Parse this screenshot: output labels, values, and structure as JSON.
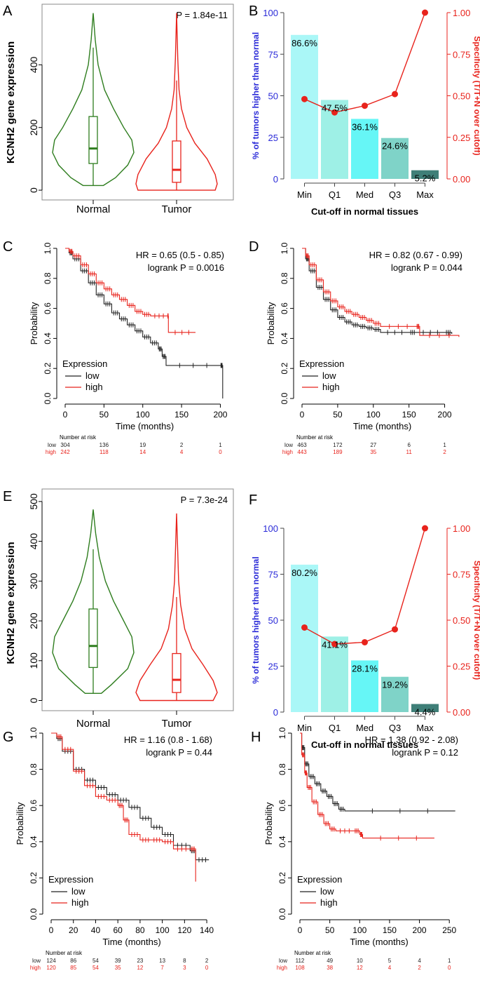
{
  "figure": {
    "panel_letters": [
      "A",
      "B",
      "C",
      "D",
      "E",
      "F",
      "G",
      "H"
    ]
  },
  "colors": {
    "normal_green": "#2e7d1e",
    "tumor_red": "#e8231c",
    "axis_blue": "#2a2ad8",
    "spec_red": "#e8231c",
    "km_low": "#222222",
    "km_high": "#e8231c",
    "bar_Min": "#aaf7f7",
    "bar_Q1": "#9ef0e6",
    "bar_Med": "#66f6f6",
    "bar_Q3": "#7fd3c8",
    "bar_Max": "#3f7f78"
  },
  "chart_data": [
    {
      "id": "A",
      "type": "violin",
      "ylabel": "KCNH2 gene expression",
      "categories": [
        "Normal",
        "Tumor"
      ],
      "yticks": [
        0,
        200,
        400
      ],
      "ylim": [
        -20,
        580
      ],
      "pvalue": "P = 1.84e-11",
      "groups": [
        {
          "name": "Normal",
          "min": 15,
          "q1": 85,
          "median": 133,
          "q3": 235,
          "max": 455,
          "top": 565,
          "density": [
            [
              15,
              0.25
            ],
            [
              40,
              0.55
            ],
            [
              80,
              0.85
            ],
            [
              120,
              1.0
            ],
            [
              160,
              0.95
            ],
            [
              200,
              0.75
            ],
            [
              260,
              0.5
            ],
            [
              320,
              0.28
            ],
            [
              400,
              0.12
            ],
            [
              480,
              0.05
            ],
            [
              565,
              0
            ]
          ]
        },
        {
          "name": "Tumor",
          "min": 0,
          "q1": 25,
          "median": 65,
          "q3": 157,
          "max": 350,
          "top": 565,
          "density": [
            [
              0,
              0.95
            ],
            [
              20,
              1.0
            ],
            [
              50,
              0.95
            ],
            [
              100,
              0.75
            ],
            [
              150,
              0.45
            ],
            [
              200,
              0.25
            ],
            [
              260,
              0.12
            ],
            [
              320,
              0.06
            ],
            [
              420,
              0.03
            ],
            [
              565,
              0
            ]
          ]
        }
      ]
    },
    {
      "id": "B",
      "type": "bar+line",
      "categories": [
        "Min",
        "Q1",
        "Med",
        "Q3",
        "Max"
      ],
      "values": [
        86.6,
        47.5,
        36.1,
        24.6,
        5.2
      ],
      "labels": [
        "86.6%",
        "47.5%",
        "36.1%",
        "24.6%",
        "5.2%"
      ],
      "specificity": [
        0.48,
        0.4,
        0.44,
        0.51,
        1.0
      ],
      "ylabel": "% of tumors higher than normal",
      "y2label": "Specificity (T/T+N over cutoff)",
      "xlabel": "Cut-off in normal tissues",
      "yticks": [
        0,
        25,
        50,
        75,
        100
      ],
      "y2ticks": [
        "0.00",
        "0.25",
        "0.50",
        "0.75",
        "1.00"
      ]
    },
    {
      "id": "C",
      "type": "kaplan-meier",
      "hr": "HR = 0.65 (0.5 - 0.85)",
      "logrank": "logrank P = 0.0016",
      "xlabel": "Time (months)",
      "ylabel": "Probability",
      "xlim": [
        0,
        205
      ],
      "xticks": [
        0,
        50,
        100,
        150,
        200
      ],
      "yticks": [
        "0.0",
        "0.2",
        "0.4",
        "0.6",
        "0.8",
        "1.0"
      ],
      "legend_title": "Expression",
      "legend": [
        "low",
        "high"
      ],
      "risk_title": "Number at risk",
      "risk_times": [
        0,
        50,
        100,
        150,
        200
      ],
      "risk": {
        "low": [
          "304",
          "136",
          "19",
          "2",
          "1"
        ],
        "high": [
          "242",
          "118",
          "14",
          "4",
          "0"
        ]
      },
      "curves": {
        "low": [
          [
            0,
            1.0
          ],
          [
            5,
            0.97
          ],
          [
            10,
            0.93
          ],
          [
            20,
            0.85
          ],
          [
            30,
            0.77
          ],
          [
            40,
            0.69
          ],
          [
            50,
            0.63
          ],
          [
            60,
            0.57
          ],
          [
            70,
            0.53
          ],
          [
            80,
            0.49
          ],
          [
            90,
            0.45
          ],
          [
            100,
            0.41
          ],
          [
            110,
            0.37
          ],
          [
            120,
            0.33
          ],
          [
            125,
            0.28
          ],
          [
            130,
            0.22
          ],
          [
            200,
            0.22
          ],
          [
            203,
            0.0
          ]
        ],
        "high": [
          [
            0,
            1.0
          ],
          [
            5,
            0.98
          ],
          [
            10,
            0.95
          ],
          [
            20,
            0.89
          ],
          [
            30,
            0.83
          ],
          [
            40,
            0.77
          ],
          [
            50,
            0.73
          ],
          [
            60,
            0.69
          ],
          [
            70,
            0.66
          ],
          [
            80,
            0.62
          ],
          [
            90,
            0.58
          ],
          [
            100,
            0.56
          ],
          [
            110,
            0.55
          ],
          [
            132,
            0.55
          ],
          [
            133,
            0.44
          ],
          [
            168,
            0.44
          ]
        ]
      }
    },
    {
      "id": "D",
      "type": "kaplan-meier",
      "hr": "HR = 0.82 (0.67 - 0.99)",
      "logrank": "logrank P = 0.044",
      "xlabel": "Time (months)",
      "ylabel": "Probability",
      "xlim": [
        0,
        225
      ],
      "xticks": [
        0,
        50,
        100,
        150,
        200
      ],
      "yticks": [
        "0.0",
        "0.2",
        "0.4",
        "0.6",
        "0.8",
        "1.0"
      ],
      "legend_title": "Expression",
      "legend": [
        "low",
        "high"
      ],
      "risk_title": "Number at risk",
      "risk_times": [
        0,
        50,
        100,
        150,
        200
      ],
      "risk": {
        "low": [
          "463",
          "172",
          "27",
          "6",
          "1"
        ],
        "high": [
          "443",
          "189",
          "35",
          "11",
          "2"
        ]
      },
      "curves": {
        "low": [
          [
            0,
            1.0
          ],
          [
            5,
            0.93
          ],
          [
            10,
            0.85
          ],
          [
            20,
            0.74
          ],
          [
            30,
            0.66
          ],
          [
            40,
            0.59
          ],
          [
            50,
            0.54
          ],
          [
            60,
            0.51
          ],
          [
            70,
            0.49
          ],
          [
            80,
            0.48
          ],
          [
            90,
            0.47
          ],
          [
            100,
            0.46
          ],
          [
            110,
            0.44
          ],
          [
            150,
            0.44
          ],
          [
            160,
            0.44
          ],
          [
            200,
            0.44
          ],
          [
            210,
            0.43
          ]
        ],
        "high": [
          [
            0,
            1.0
          ],
          [
            5,
            0.95
          ],
          [
            10,
            0.89
          ],
          [
            20,
            0.79
          ],
          [
            30,
            0.71
          ],
          [
            40,
            0.65
          ],
          [
            50,
            0.61
          ],
          [
            60,
            0.58
          ],
          [
            70,
            0.56
          ],
          [
            80,
            0.54
          ],
          [
            90,
            0.52
          ],
          [
            100,
            0.5
          ],
          [
            110,
            0.48
          ],
          [
            160,
            0.48
          ],
          [
            165,
            0.42
          ],
          [
            220,
            0.41
          ]
        ]
      }
    },
    {
      "id": "E",
      "type": "violin",
      "ylabel": "KCNH2 gene expression",
      "categories": [
        "Normal",
        "Tumor"
      ],
      "yticks": [
        0,
        100,
        200,
        300,
        400,
        500
      ],
      "ylim": [
        -15,
        505
      ],
      "pvalue": "P = 7.3e-24",
      "groups": [
        {
          "name": "Normal",
          "min": 18,
          "q1": 83,
          "median": 137,
          "q3": 230,
          "max": 380,
          "top": 480,
          "density": [
            [
              18,
              0.2
            ],
            [
              40,
              0.45
            ],
            [
              80,
              0.85
            ],
            [
              120,
              1.0
            ],
            [
              160,
              0.95
            ],
            [
              200,
              0.75
            ],
            [
              250,
              0.5
            ],
            [
              300,
              0.3
            ],
            [
              360,
              0.15
            ],
            [
              420,
              0.06
            ],
            [
              480,
              0
            ]
          ]
        },
        {
          "name": "Tumor",
          "min": 0,
          "q1": 20,
          "median": 52,
          "q3": 118,
          "max": 260,
          "top": 470,
          "density": [
            [
              0,
              0.9
            ],
            [
              20,
              1.0
            ],
            [
              50,
              0.9
            ],
            [
              90,
              0.65
            ],
            [
              130,
              0.38
            ],
            [
              180,
              0.2
            ],
            [
              240,
              0.1
            ],
            [
              300,
              0.05
            ],
            [
              400,
              0.02
            ],
            [
              470,
              0
            ]
          ]
        }
      ]
    },
    {
      "id": "F",
      "type": "bar+line",
      "categories": [
        "Min",
        "Q1",
        "Med",
        "Q3",
        "Max"
      ],
      "values": [
        80.2,
        41.1,
        28.1,
        19.2,
        4.4
      ],
      "labels": [
        "80.2%",
        "41.1%",
        "28.1%",
        "19.2%",
        "4.4%"
      ],
      "specificity": [
        0.46,
        0.37,
        0.38,
        0.45,
        1.0
      ],
      "ylabel": "% of tumors higher than normal",
      "y2label": "Specificity (T/T+N over cutoff)",
      "xlabel": "Cut-off in normal tissues",
      "yticks": [
        0,
        25,
        50,
        75,
        100
      ],
      "y2ticks": [
        "0.00",
        "0.25",
        "0.50",
        "0.75",
        "1.00"
      ]
    },
    {
      "id": "G",
      "type": "kaplan-meier",
      "hr": "HR = 1.16 (0.8 - 1.68)",
      "logrank": "logrank P = 0.44",
      "xlabel": "Time (months)",
      "ylabel": "Probability",
      "xlim": [
        0,
        145
      ],
      "xticks": [
        0,
        20,
        40,
        60,
        80,
        100,
        120,
        140
      ],
      "yticks": [
        "0.0",
        "0.2",
        "0.4",
        "0.6",
        "0.8",
        "1.0"
      ],
      "legend_title": "Expression",
      "legend": [
        "low",
        "high"
      ],
      "risk_title": "Number at risk",
      "risk_times": [
        0,
        20,
        40,
        60,
        80,
        100,
        120,
        140
      ],
      "risk": {
        "low": [
          "124",
          "86",
          "54",
          "39",
          "23",
          "13",
          "8",
          "2"
        ],
        "high": [
          "120",
          "85",
          "54",
          "35",
          "12",
          "7",
          "3",
          "0"
        ]
      },
      "curves": {
        "low": [
          [
            0,
            1.0
          ],
          [
            5,
            0.97
          ],
          [
            10,
            0.9
          ],
          [
            20,
            0.8
          ],
          [
            30,
            0.74
          ],
          [
            40,
            0.7
          ],
          [
            50,
            0.66
          ],
          [
            60,
            0.63
          ],
          [
            70,
            0.59
          ],
          [
            80,
            0.53
          ],
          [
            90,
            0.48
          ],
          [
            100,
            0.44
          ],
          [
            110,
            0.38
          ],
          [
            125,
            0.35
          ],
          [
            130,
            0.3
          ],
          [
            142,
            0.3
          ]
        ],
        "high": [
          [
            0,
            1.0
          ],
          [
            5,
            0.98
          ],
          [
            10,
            0.91
          ],
          [
            20,
            0.79
          ],
          [
            30,
            0.71
          ],
          [
            40,
            0.65
          ],
          [
            50,
            0.63
          ],
          [
            60,
            0.6
          ],
          [
            65,
            0.52
          ],
          [
            70,
            0.44
          ],
          [
            80,
            0.41
          ],
          [
            90,
            0.41
          ],
          [
            100,
            0.4
          ],
          [
            110,
            0.36
          ],
          [
            125,
            0.36
          ],
          [
            130,
            0.18
          ]
        ]
      }
    },
    {
      "id": "H",
      "type": "kaplan-meier",
      "hr": "HR = 1.38 (0.92 - 2.08)",
      "logrank": "logrank P = 0.12",
      "xlabel": "Time (months)",
      "ylabel": "Probability",
      "xlim": [
        0,
        265
      ],
      "xticks": [
        0,
        50,
        100,
        150,
        200,
        250
      ],
      "yticks": [
        "0.0",
        "0.2",
        "0.4",
        "0.6",
        "0.8",
        "1.0"
      ],
      "legend_title": "Expression",
      "legend": [
        "low",
        "high"
      ],
      "risk_title": "Number at risk",
      "risk_times": [
        0,
        50,
        100,
        150,
        200,
        250
      ],
      "risk": {
        "low": [
          "112",
          "49",
          "10",
          "5",
          "4",
          "1"
        ],
        "high": [
          "108",
          "38",
          "12",
          "4",
          "2",
          "0"
        ]
      },
      "curves": {
        "low": [
          [
            0,
            1.0
          ],
          [
            3,
            0.92
          ],
          [
            8,
            0.83
          ],
          [
            15,
            0.76
          ],
          [
            25,
            0.72
          ],
          [
            35,
            0.68
          ],
          [
            45,
            0.65
          ],
          [
            55,
            0.61
          ],
          [
            65,
            0.58
          ],
          [
            75,
            0.57
          ],
          [
            260,
            0.57
          ]
        ],
        "high": [
          [
            0,
            1.0
          ],
          [
            3,
            0.88
          ],
          [
            8,
            0.78
          ],
          [
            12,
            0.7
          ],
          [
            20,
            0.62
          ],
          [
            30,
            0.55
          ],
          [
            40,
            0.5
          ],
          [
            50,
            0.47
          ],
          [
            60,
            0.46
          ],
          [
            90,
            0.46
          ],
          [
            100,
            0.44
          ],
          [
            105,
            0.42
          ],
          [
            225,
            0.42
          ]
        ]
      }
    }
  ]
}
